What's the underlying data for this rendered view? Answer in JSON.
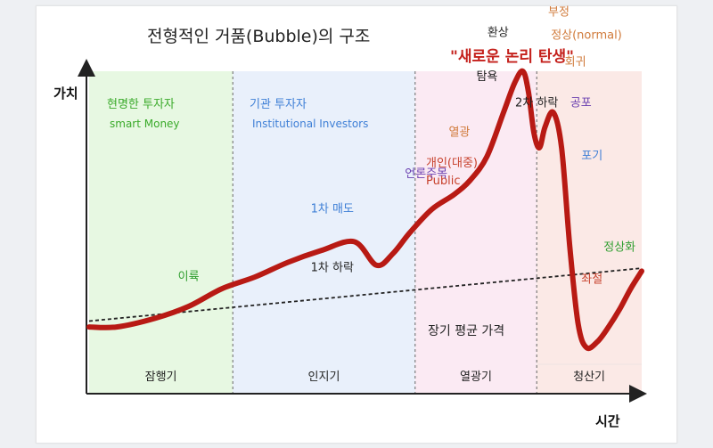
{
  "chart_data": {
    "type": "line",
    "title": "전형적인 거품(Bubble)의 구조",
    "headline": "\"새로운 논리 탄생\"",
    "ylabel": "가치",
    "xlabel": "시간",
    "phases": [
      {
        "label": "잠행기",
        "color": "#e7f8e2",
        "x0": 0,
        "x1": 26
      },
      {
        "label": "인지기",
        "color": "#e9f0fb",
        "x0": 26,
        "x1": 59
      },
      {
        "label": "열광기",
        "color": "#fbeaf3",
        "x0": 59,
        "x1": 81
      },
      {
        "label": "청산기",
        "color": "#fbe9e6",
        "x0": 81,
        "x1": 100
      }
    ],
    "ylim": [
      0,
      100
    ],
    "xlim": [
      0,
      100
    ],
    "series": [
      {
        "color": "#b81a14",
        "x": [
          0,
          5,
          12,
          18,
          24,
          30,
          36,
          42,
          48,
          52,
          55,
          58,
          62,
          66,
          69,
          72,
          75,
          77,
          78.5,
          79.5,
          80.5,
          81.5,
          82.5,
          84,
          85.5,
          87,
          88.5,
          90,
          92,
          94,
          96,
          98,
          100
        ],
        "y": [
          13,
          13,
          16,
          20,
          26,
          30,
          35,
          39,
          42,
          34,
          38,
          45,
          53,
          58,
          63,
          71,
          86,
          96,
          100,
          93,
          79,
          74,
          81,
          86,
          74,
          40,
          14,
          6,
          8,
          13,
          19,
          26,
          32
        ]
      }
    ],
    "trendline": {
      "label": "장기 평균 가격",
      "x": [
        0,
        100
      ],
      "y": [
        15,
        33
      ]
    },
    "groups": [
      {
        "label": "현명한 투자자",
        "sub": "smart Money",
        "color": "#3aaa2a"
      },
      {
        "label": "기관 투자자",
        "sub": "Institutional Investors",
        "color": "#3e7fd6"
      },
      {
        "label": "개인(대중)",
        "sub": "Public",
        "color": "#c7412c"
      }
    ],
    "annotations": [
      {
        "text": "이륙",
        "color": "#2f9e2f",
        "x": 18,
        "y": 29
      },
      {
        "text": "1차 매도",
        "color": "#3e7fd6",
        "x": 44,
        "y": 52
      },
      {
        "text": "1차 하락",
        "color": "#222222",
        "x": 44,
        "y": 32
      },
      {
        "text": "언론주목",
        "color": "#6a3fb0",
        "x": 61,
        "y": 64
      },
      {
        "text": "열광",
        "color": "#d07a3a",
        "x": 67,
        "y": 78
      },
      {
        "text": "탐욕",
        "color": "#222222",
        "x": 72,
        "y": 97
      },
      {
        "text": "환상",
        "color": "#222222",
        "x": 74,
        "y": 112
      },
      {
        "text": "부정",
        "color": "#d07a3a",
        "x": 85,
        "y": 119
      },
      {
        "text": "정상(normal)",
        "color": "#d07a3a",
        "x": 90,
        "y": 111
      },
      {
        "text": "회귀",
        "color": "#d07a3a",
        "x": 88,
        "y": 102
      },
      {
        "text": "2차 하락",
        "color": "#222222",
        "x": 81,
        "y": 88
      },
      {
        "text": "공포",
        "color": "#6a3fb0",
        "x": 89,
        "y": 88
      },
      {
        "text": "포기",
        "color": "#3e7fd6",
        "x": 91,
        "y": 70
      },
      {
        "text": "정상화",
        "color": "#2f9e2f",
        "x": 96,
        "y": 39
      },
      {
        "text": "좌절",
        "color": "#c7412c",
        "x": 91,
        "y": 28
      }
    ]
  }
}
